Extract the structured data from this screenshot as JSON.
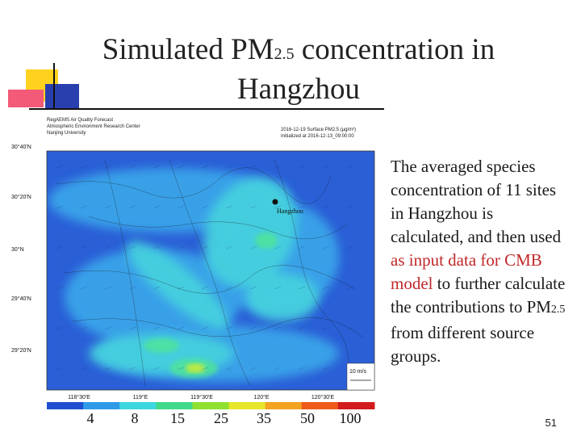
{
  "slide": {
    "title_part1": "Simulated PM",
    "title_sub": "2.5",
    "title_part2": " concentration in Hangzhou",
    "page_number": "51"
  },
  "map": {
    "header_left": [
      "RegAEMS Air Quality Forecast",
      "Atmospheric Environment Research Center",
      "Nanjing University"
    ],
    "header_right": [
      "2016-12-19 Surface PM2.5 (μg/m³)",
      "Initialized at 2016-12-13_09:00:00"
    ],
    "city_label": "Hangzhou",
    "lat_labels": [
      "30°40'N",
      "30°20'N",
      "30°N",
      "29°40'N",
      "29°20'N"
    ],
    "lon_labels": [
      "118°30'E",
      "119°E",
      "119°30'E",
      "120°E",
      "120°30'E"
    ],
    "wind_scale_label": "10 m/s",
    "colorbar_labels": [
      "4",
      "8",
      "15",
      "25",
      "35",
      "50",
      "100"
    ],
    "colorbar_colors": [
      "#1f4fd0",
      "#2f9be8",
      "#3dd7e0",
      "#41d98a",
      "#8fe030",
      "#e6e62a",
      "#f2a31f",
      "#ee5a1a",
      "#d21c1c"
    ]
  },
  "body_text": {
    "seg1": "The averaged species concentration of 11 sites in Hangzhou is calculated, and then used ",
    "seg2": "as input data for CMB model",
    "seg3": " to further calculate the contributions to PM",
    "seg3_sub": "2.5",
    "seg4": " from different source groups."
  }
}
